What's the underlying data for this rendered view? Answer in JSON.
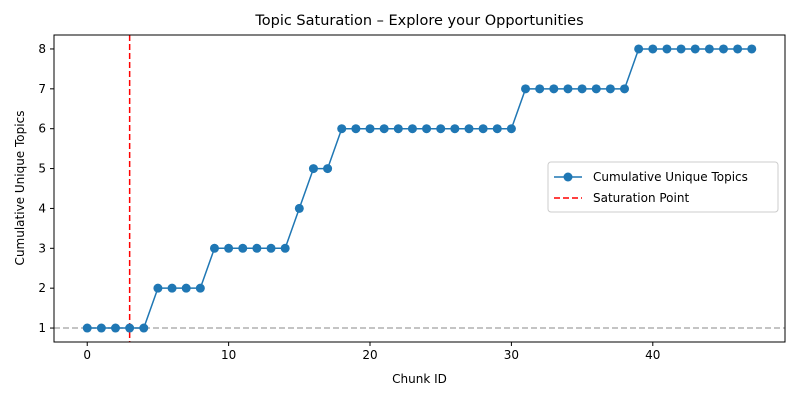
{
  "chart_data": {
    "type": "line",
    "title": "Topic Saturation – Explore your Opportunities",
    "xlabel": "Chunk ID",
    "ylabel": "Cumulative Unique Topics",
    "xlim": [
      -2.35,
      49.35
    ],
    "ylim": [
      0.65,
      8.35
    ],
    "xticks": [
      0,
      10,
      20,
      30,
      40
    ],
    "yticks": [
      1,
      2,
      3,
      4,
      5,
      6,
      7,
      8
    ],
    "grid": false,
    "legend_position": "center-right",
    "series": [
      {
        "name": "Cumulative Unique Topics",
        "color": "#1f77b4",
        "marker": "circle",
        "x": [
          0,
          1,
          2,
          3,
          4,
          5,
          6,
          7,
          8,
          9,
          10,
          11,
          12,
          13,
          14,
          15,
          16,
          17,
          18,
          19,
          20,
          21,
          22,
          23,
          24,
          25,
          26,
          27,
          28,
          29,
          30,
          31,
          32,
          33,
          34,
          35,
          36,
          37,
          38,
          39,
          40,
          41,
          42,
          43,
          44,
          45,
          46,
          47
        ],
        "y": [
          1,
          1,
          1,
          1,
          1,
          2,
          2,
          2,
          2,
          3,
          3,
          3,
          3,
          3,
          3,
          4,
          5,
          5,
          6,
          6,
          6,
          6,
          6,
          6,
          6,
          6,
          6,
          6,
          6,
          6,
          6,
          7,
          7,
          7,
          7,
          7,
          7,
          7,
          7,
          8,
          8,
          8,
          8,
          8,
          8,
          8,
          8,
          8
        ]
      }
    ],
    "vertical_line": {
      "name": "Saturation Point",
      "x": 3,
      "color": "#ff0000",
      "style": "dashed"
    },
    "horizontal_line": {
      "y": 1,
      "color": "#b0b0b0",
      "style": "dashed"
    }
  }
}
